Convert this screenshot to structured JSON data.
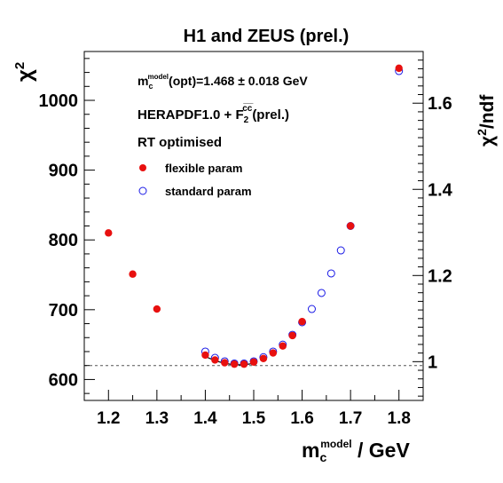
{
  "chart_data": {
    "type": "scatter",
    "title": "H1 and ZEUS (prel.)",
    "ylabel": "χ",
    "ylabel_sup": "2",
    "y2label": "χ",
    "y2label_sup": "2",
    "y2label_rest": "/ndf",
    "xlabel_base": "m",
    "xlabel_sub": "c",
    "xlabel_sup": "model",
    "xlabel_rest": " / GeV",
    "xlim": [
      1.15,
      1.85
    ],
    "ylim": [
      570,
      1070
    ],
    "y2lim": [
      0.91,
      1.72
    ],
    "x_ticks": [
      "1.2",
      "1.3",
      "1.4",
      "1.5",
      "1.6",
      "1.7",
      "1.8"
    ],
    "y_ticks": [
      "600",
      "700",
      "800",
      "900",
      "1000"
    ],
    "y2_ticks": [
      "1",
      "1.2",
      "1.4",
      "1.6"
    ],
    "reference_line": 620,
    "annotations": {
      "mc_base": "m",
      "mc_sub": "c",
      "mc_sup": "model",
      "mc_rest": "(opt)=1.468 ± 0.018 GeV",
      "pdf_base": "HERAPDF1.0 + F",
      "pdf_sub": "2",
      "pdf_sup": "c̅c̅",
      "pdf_rest": "(prel.)",
      "rt": "RT optimised"
    },
    "legend_position": "top-left",
    "series": [
      {
        "name": "flexible param",
        "marker": "filled-circle",
        "color": "#e8100f",
        "points": [
          [
            1.2,
            810
          ],
          [
            1.25,
            751
          ],
          [
            1.3,
            701
          ],
          [
            1.4,
            635
          ],
          [
            1.42,
            628
          ],
          [
            1.44,
            624
          ],
          [
            1.46,
            622
          ],
          [
            1.48,
            622
          ],
          [
            1.5,
            625
          ],
          [
            1.52,
            630
          ],
          [
            1.54,
            638
          ],
          [
            1.56,
            648
          ],
          [
            1.58,
            663
          ],
          [
            1.6,
            683
          ],
          [
            1.7,
            820
          ],
          [
            1.8,
            1046
          ]
        ]
      },
      {
        "name": "standard param",
        "marker": "open-circle",
        "color": "#1a1ae6",
        "points": [
          [
            1.4,
            640
          ],
          [
            1.42,
            631
          ],
          [
            1.44,
            626
          ],
          [
            1.46,
            623
          ],
          [
            1.48,
            623
          ],
          [
            1.5,
            626
          ],
          [
            1.52,
            632
          ],
          [
            1.54,
            640
          ],
          [
            1.56,
            650
          ],
          [
            1.58,
            664
          ],
          [
            1.6,
            682
          ],
          [
            1.62,
            701
          ],
          [
            1.64,
            724
          ],
          [
            1.66,
            752
          ],
          [
            1.68,
            785
          ],
          [
            1.7,
            820
          ],
          [
            1.8,
            1042
          ]
        ]
      }
    ],
    "fit_curve": {
      "color": "#000000",
      "points": [
        [
          1.4,
          633
        ],
        [
          1.42,
          627
        ],
        [
          1.44,
          623
        ],
        [
          1.46,
          621
        ],
        [
          1.48,
          621
        ],
        [
          1.5,
          623
        ]
      ]
    }
  }
}
